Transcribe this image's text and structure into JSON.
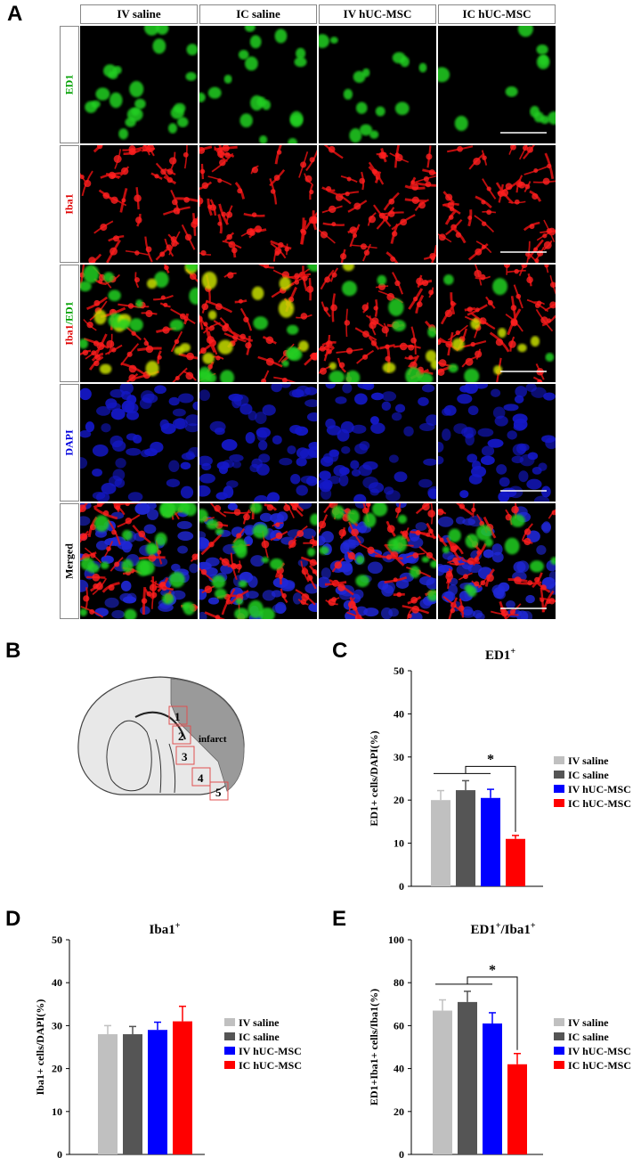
{
  "figure": {
    "panel_a_label": "A",
    "panel_b_label": "B",
    "panel_c_label": "C",
    "panel_d_label": "D",
    "panel_e_label": "E",
    "columns": [
      "IV saline",
      "IC saline",
      "IV hUC-MSC",
      "IC hUC-MSC"
    ],
    "rows": [
      {
        "label": "ED1",
        "color": "#00a000"
      },
      {
        "label": "Iba1",
        "color": "#e00000"
      },
      {
        "label": "Iba1/ED1",
        "color": "#e00000",
        "label_part1": "Iba1",
        "label_part2": "/ED1",
        "part2_color": "#00a000"
      },
      {
        "label": "DAPI",
        "color": "#0000dd"
      },
      {
        "label": "Merged",
        "color": "#000000"
      }
    ],
    "schematic": {
      "regions": [
        "1",
        "2",
        "3",
        "4",
        "5"
      ],
      "infarct_label": "infarct"
    }
  },
  "chart_data": [
    {
      "type": "bar",
      "panel": "C",
      "title": "ED1+",
      "title_main": "ED1",
      "title_sup": "+",
      "ylabel": "ED1+ cells/DAPI(%)",
      "ylim": [
        0,
        50
      ],
      "yticks": [
        "0",
        "10",
        "20",
        "30",
        "40",
        "50"
      ],
      "categories": [
        "IV saline",
        "IC saline",
        "IV hUC-MSC",
        "IC hUC-MSC"
      ],
      "values": [
        20,
        22.3,
        20.5,
        11
      ],
      "errors": [
        2.2,
        2.2,
        2.0,
        0.8
      ],
      "colors": [
        "#c0c0c0",
        "#555555",
        "#0000ff",
        "#ff0000"
      ],
      "significance": "*",
      "legend_position": "right"
    },
    {
      "type": "bar",
      "panel": "D",
      "title": "Iba1+",
      "title_main": "Iba1",
      "title_sup": "+",
      "ylabel": "Iba1+ cells/DAPI(%)",
      "ylim": [
        0,
        50
      ],
      "yticks": [
        "0",
        "10",
        "20",
        "30",
        "40",
        "50"
      ],
      "categories": [
        "IV saline",
        "IC saline",
        "IV hUC-MSC",
        "IC hUC-MSC"
      ],
      "values": [
        28,
        28,
        29,
        31
      ],
      "errors": [
        2.0,
        1.8,
        1.8,
        3.5
      ],
      "colors": [
        "#c0c0c0",
        "#555555",
        "#0000ff",
        "#ff0000"
      ],
      "significance": "",
      "legend_position": "right"
    },
    {
      "type": "bar",
      "panel": "E",
      "title": "ED1+/Iba1+",
      "title_main": "ED1",
      "title_sup": "+",
      "title_main2": "/Iba1",
      "title_sup2": "+",
      "ylabel": "ED1+Iba1+ cells/Iba1(%)",
      "ylim": [
        0,
        100
      ],
      "yticks": [
        "0",
        "20",
        "40",
        "60",
        "80",
        "100"
      ],
      "categories": [
        "IV saline",
        "IC saline",
        "IV hUC-MSC",
        "IC hUC-MSC"
      ],
      "values": [
        67,
        71,
        61,
        42
      ],
      "errors": [
        5,
        5,
        5,
        5
      ],
      "colors": [
        "#c0c0c0",
        "#555555",
        "#0000ff",
        "#ff0000"
      ],
      "significance": "*",
      "legend_position": "right"
    }
  ]
}
